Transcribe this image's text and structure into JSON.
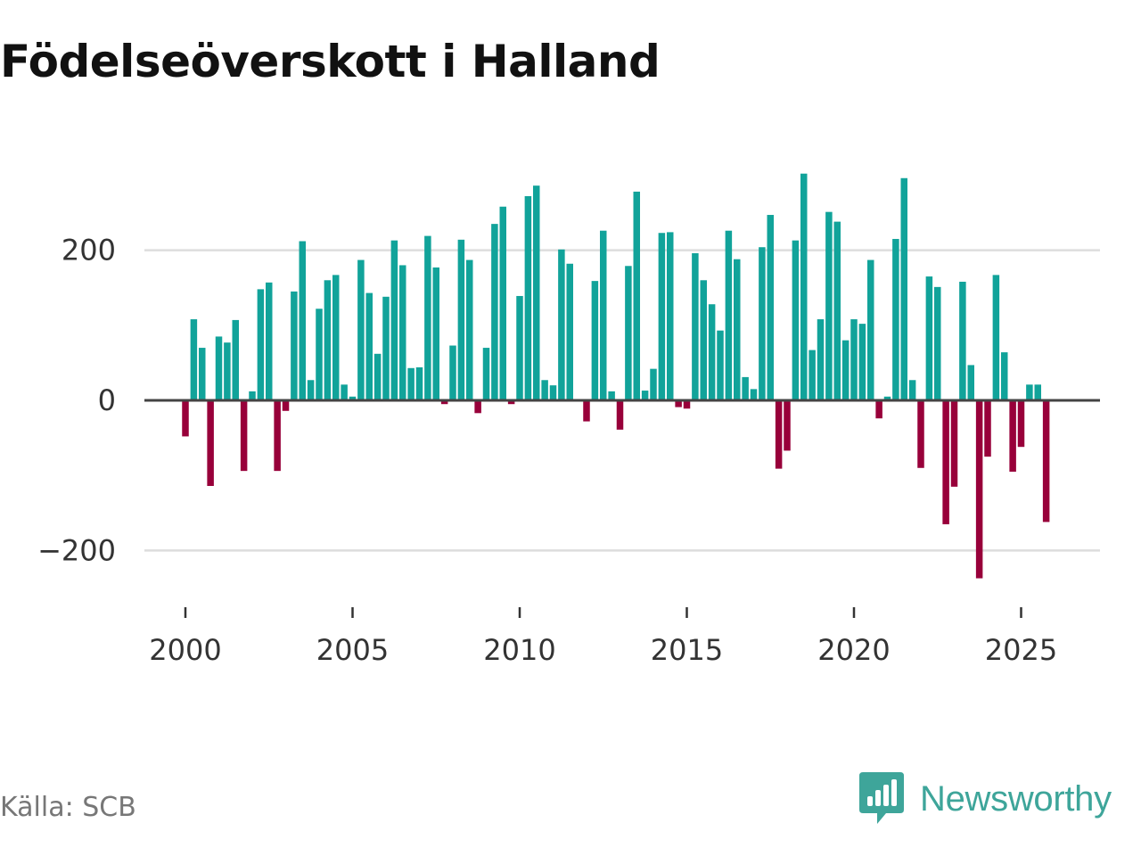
{
  "chart_data": {
    "type": "bar",
    "title": "Födelseöverskott i Halland",
    "xlabel": "",
    "ylabel": "",
    "ylim": [
      -270,
      320
    ],
    "yticks": [
      200,
      0,
      -200
    ],
    "ytick_labels": [
      "200",
      "0",
      "−200"
    ],
    "xticks": [
      2000,
      2005,
      2010,
      2015,
      2020,
      2025
    ],
    "xtick_labels": [
      "2000",
      "2005",
      "2010",
      "2015",
      "2020",
      "2025"
    ],
    "xlim": [
      1999.5,
      2026.87
    ],
    "grid": true,
    "positive_color": "#11a39a",
    "negative_color": "#98003a",
    "zero_line_color": "#444444",
    "grid_color": "#dddddd",
    "series": [
      {
        "name": "Födelseöverskott",
        "x": [
          2000.0,
          2000.25,
          2000.5,
          2000.75,
          2001.0,
          2001.25,
          2001.5,
          2001.75,
          2002.0,
          2002.25,
          2002.5,
          2002.75,
          2003.0,
          2003.25,
          2003.5,
          2003.75,
          2004.0,
          2004.25,
          2004.5,
          2004.75,
          2005.0,
          2005.25,
          2005.5,
          2005.75,
          2006.0,
          2006.25,
          2006.5,
          2006.75,
          2007.0,
          2007.25,
          2007.5,
          2007.75,
          2008.0,
          2008.25,
          2008.5,
          2008.75,
          2009.0,
          2009.25,
          2009.5,
          2009.75,
          2010.0,
          2010.25,
          2010.5,
          2010.75,
          2011.0,
          2011.25,
          2011.5,
          2011.75,
          2012.0,
          2012.25,
          2012.5,
          2012.75,
          2013.0,
          2013.25,
          2013.5,
          2013.75,
          2014.0,
          2014.25,
          2014.5,
          2014.75,
          2015.0,
          2015.25,
          2015.5,
          2015.75,
          2016.0,
          2016.25,
          2016.5,
          2016.75,
          2017.0,
          2017.25,
          2017.5,
          2017.75,
          2018.0,
          2018.25,
          2018.5,
          2018.75,
          2019.0,
          2019.25,
          2019.5,
          2019.75,
          2020.0,
          2020.25,
          2020.5,
          2020.75,
          2021.0,
          2021.25,
          2021.5,
          2021.75,
          2022.0,
          2022.25,
          2022.5,
          2022.75,
          2023.0,
          2023.25,
          2023.5,
          2023.75,
          2024.0,
          2024.25,
          2024.5,
          2024.75,
          2025.0,
          2025.25,
          2025.5,
          2025.75
        ],
        "values": [
          -48,
          108,
          70,
          -114,
          85,
          77,
          107,
          -94,
          12,
          148,
          157,
          -94,
          -14,
          145,
          212,
          27,
          122,
          160,
          167,
          21,
          5,
          187,
          143,
          62,
          138,
          213,
          180,
          43,
          44,
          219,
          177,
          -5,
          73,
          214,
          187,
          -17,
          70,
          235,
          258,
          -5,
          139,
          272,
          286,
          27,
          20,
          201,
          182,
          0,
          -28,
          159,
          226,
          12,
          -39,
          179,
          278,
          13,
          42,
          223,
          224,
          -9,
          -11,
          196,
          160,
          128,
          93,
          226,
          188,
          31,
          15,
          204,
          247,
          -91,
          -67,
          213,
          302,
          67,
          108,
          251,
          238,
          80,
          108,
          102,
          187,
          -24,
          5,
          215,
          296,
          27,
          -90,
          165,
          151,
          -165,
          -115,
          158,
          47,
          -237,
          -75,
          167,
          64,
          -95,
          -62,
          21,
          21,
          -162
        ]
      }
    ]
  },
  "source": "Källa: SCB",
  "brand": {
    "name": "Newsworthy",
    "icon": "newsworthy-logo-icon",
    "color": "#3ea59a"
  }
}
